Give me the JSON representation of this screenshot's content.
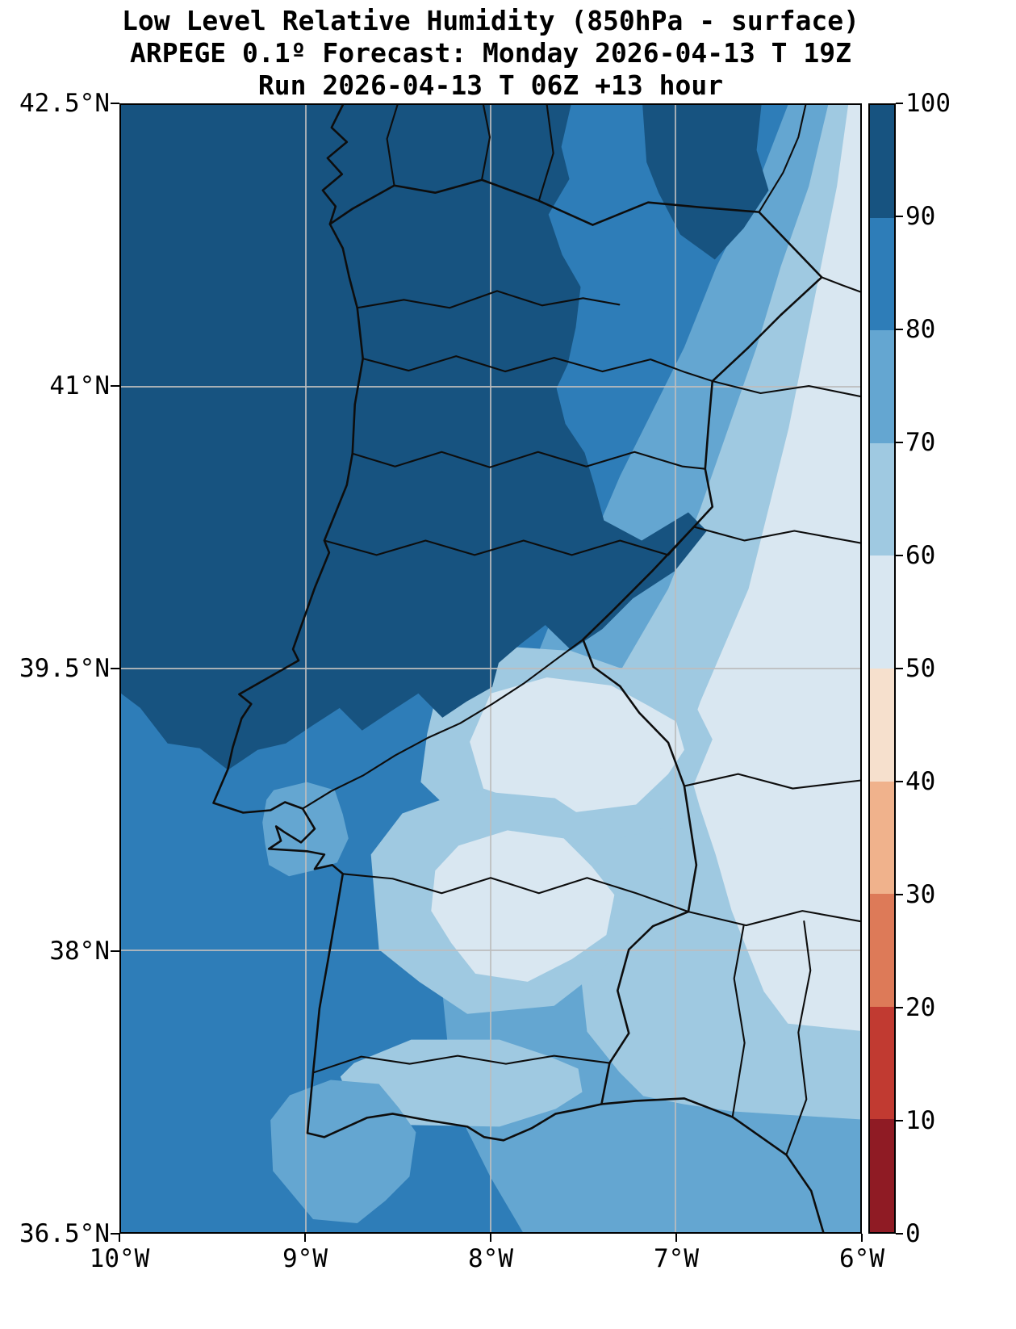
{
  "title": {
    "line1": "Low Level Relative Humidity (850hPa - surface)",
    "line2": "ARPEGE 0.1º Forecast: Monday 2026-04-13 T 19Z",
    "line3": "Run 2026-04-13 T 06Z +13 hour"
  },
  "axes": {
    "y_ticks": [
      "42.5°N",
      "41°N",
      "39.5°N",
      "38°N",
      "36.5°N"
    ],
    "x_ticks": [
      "10°W",
      "9°W",
      "8°W",
      "7°W",
      "6°W"
    ]
  },
  "colorbar": {
    "tick_labels": [
      "100",
      "90",
      "80",
      "70",
      "60",
      "50",
      "40",
      "30",
      "20",
      "10",
      "0"
    ],
    "colors_top_to_bottom": [
      "#175380",
      "#2e7db8",
      "#64a6d1",
      "#9fc9e1",
      "#d9e7f1",
      "#f6e0cd",
      "#f0b28c",
      "#dd7a58",
      "#c13a31",
      "#8f1b24"
    ]
  },
  "map": {
    "boundary_color": "#0d0d0d",
    "grid_color": "#bdbdbd"
  },
  "chart_data": {
    "type": "heatmap",
    "subtype": "filled_contour_map",
    "title": "Low Level Relative Humidity (850hPa - surface)",
    "model": "ARPEGE 0.1º",
    "forecast_valid": "Monday 2026-04-13 T 19Z",
    "run": "2026-04-13 T 06Z",
    "lead_time_hours": 13,
    "variable": "relative humidity",
    "units": "%",
    "lon_range_deg_west": [
      10,
      6
    ],
    "lat_range_deg_north": [
      36.5,
      42.5
    ],
    "grid_lon_labels": [
      "10°W",
      "9°W",
      "8°W",
      "7°W",
      "6°W"
    ],
    "grid_lat_labels": [
      "42.5°N",
      "41°N",
      "39.5°N",
      "38°N",
      "36.5°N"
    ],
    "colorbar_range": [
      0,
      100
    ],
    "contour_levels": [
      0,
      10,
      20,
      30,
      40,
      50,
      60,
      70,
      80,
      90,
      100
    ],
    "palette_low_to_high": [
      "#8f1b24",
      "#c13a31",
      "#dd7a58",
      "#f0b28c",
      "#f6e0cd",
      "#d9e7f1",
      "#9fc9e1",
      "#64a6d1",
      "#2e7db8",
      "#175380"
    ],
    "approx_field": [
      {
        "region": "Atlantic ocean northwest and northern Portugal interior",
        "rh": "90-100"
      },
      {
        "region": "dark ridge tongue extending SE toward Serra da Estrela",
        "rh": "90-100"
      },
      {
        "region": "remaining Atlantic ocean to the south and west",
        "rh": "80-90"
      },
      {
        "region": "central Portugal coast and Lisbon area",
        "rh": "80-90"
      },
      {
        "region": "southern Portugal (Alentejo, Algarve)",
        "rh": "60-80"
      },
      {
        "region": "Alentejo interior pale cores",
        "rh": "50-60"
      },
      {
        "region": "central belt just south of the Tejo",
        "rh": "50-60"
      },
      {
        "region": "western Spain strip between 7°W and 6°W",
        "rh": "50-70"
      },
      {
        "region": "far eastern edge near 6°W",
        "rh": "40-60"
      }
    ],
    "legend_position": "right",
    "grid": "on"
  }
}
